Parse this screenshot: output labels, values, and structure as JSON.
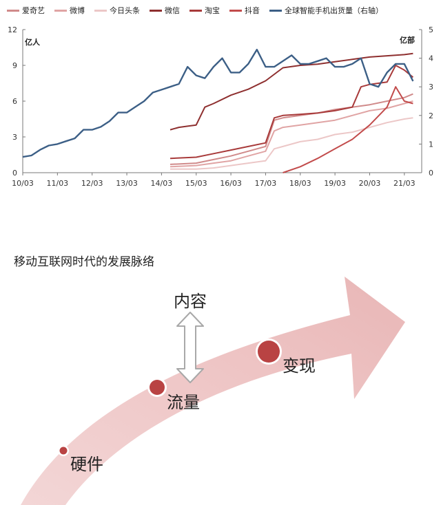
{
  "chart_data": {
    "type": "line",
    "legend": [
      "爱奇艺",
      "微博",
      "今日头条",
      "微信",
      "淘宝",
      "抖音",
      "全球智能手机出货量（右轴）"
    ],
    "left_unit": "亿人",
    "right_unit": "亿部",
    "x_ticks": [
      "10/03",
      "11/03",
      "12/03",
      "13/03",
      "14/03",
      "15/03",
      "16/03",
      "17/03",
      "18/03",
      "19/03",
      "20/03",
      "21/03"
    ],
    "y_ticks": [
      0,
      3,
      6,
      9,
      12
    ],
    "y2_ticks": [
      0,
      1,
      2,
      3,
      4,
      5
    ],
    "ylim": [
      0,
      12
    ],
    "y2lim": [
      0,
      5
    ],
    "series": [
      {
        "name": "爱奇艺",
        "axis": "left",
        "color": "#d08a8a",
        "x": [
          2014.25,
          2015.0,
          2015.5,
          2016.0,
          2016.5,
          2017.0,
          2017.25,
          2017.5,
          2018.0,
          2018.5,
          2019.0,
          2019.5,
          2020.0,
          2020.5,
          2021.0,
          2021.25
        ],
        "y": [
          0.7,
          0.8,
          1.1,
          1.4,
          1.8,
          2.2,
          4.4,
          4.6,
          4.8,
          5.0,
          5.3,
          5.5,
          5.7,
          6.0,
          6.3,
          6.6
        ]
      },
      {
        "name": "微博",
        "axis": "left",
        "color": "#e0a4a4",
        "x": [
          2014.25,
          2015.0,
          2015.5,
          2016.0,
          2016.5,
          2017.0,
          2017.25,
          2017.5,
          2018.0,
          2018.5,
          2019.0,
          2019.5,
          2020.0,
          2020.5,
          2021.0,
          2021.25
        ],
        "y": [
          0.5,
          0.6,
          0.8,
          1.0,
          1.4,
          1.8,
          3.5,
          3.8,
          4.0,
          4.2,
          4.4,
          4.8,
          5.2,
          5.4,
          5.8,
          6.0
        ]
      },
      {
        "name": "今日头条",
        "axis": "left",
        "color": "#ecc7c7",
        "x": [
          2014.25,
          2015.0,
          2015.5,
          2016.0,
          2016.5,
          2017.0,
          2017.25,
          2017.5,
          2018.0,
          2018.5,
          2019.0,
          2019.5,
          2020.0,
          2020.5,
          2021.0,
          2021.25
        ],
        "y": [
          0.3,
          0.3,
          0.4,
          0.6,
          0.8,
          1.0,
          2.0,
          2.2,
          2.6,
          2.8,
          3.2,
          3.4,
          3.8,
          4.2,
          4.5,
          4.6
        ]
      },
      {
        "name": "微信",
        "axis": "left",
        "color": "#8e2f2f",
        "x": [
          2014.25,
          2014.5,
          2014.75,
          2015.0,
          2015.25,
          2015.5,
          2016.0,
          2016.5,
          2017.0,
          2017.5,
          2018.0,
          2018.5,
          2019.0,
          2019.5,
          2020.0,
          2020.5,
          2021.0,
          2021.25
        ],
        "y": [
          3.6,
          3.8,
          3.9,
          4.0,
          5.5,
          5.8,
          6.5,
          7.0,
          7.7,
          8.8,
          9.0,
          9.1,
          9.3,
          9.5,
          9.7,
          9.8,
          9.9,
          10.0
        ]
      },
      {
        "name": "淘宝",
        "axis": "left",
        "color": "#a83a3a",
        "x": [
          2014.25,
          2015.0,
          2015.5,
          2016.0,
          2016.5,
          2017.0,
          2017.25,
          2017.5,
          2018.0,
          2018.5,
          2019.0,
          2019.5,
          2019.75,
          2020.0,
          2020.5,
          2020.75,
          2021.0,
          2021.25
        ],
        "y": [
          1.2,
          1.3,
          1.6,
          1.9,
          2.2,
          2.5,
          4.6,
          4.8,
          4.9,
          5.0,
          5.2,
          5.5,
          7.2,
          7.4,
          7.6,
          9.0,
          8.6,
          8.0
        ]
      },
      {
        "name": "抖音",
        "axis": "left",
        "color": "#c24b4b",
        "x": [
          2017.5,
          2018.0,
          2018.5,
          2019.0,
          2019.5,
          2020.0,
          2020.5,
          2020.75,
          2021.0,
          2021.25
        ],
        "y": [
          0.0,
          0.5,
          1.2,
          2.0,
          2.8,
          4.0,
          5.5,
          7.2,
          6.0,
          5.8
        ]
      },
      {
        "name": "全球智能手机出货量（右轴）",
        "axis": "right",
        "color": "#3c5f86",
        "x": [
          2010.0,
          2010.25,
          2010.5,
          2010.75,
          2011.0,
          2011.25,
          2011.5,
          2011.75,
          2012.0,
          2012.25,
          2012.5,
          2012.75,
          2013.0,
          2013.25,
          2013.5,
          2013.75,
          2014.0,
          2014.25,
          2014.5,
          2014.75,
          2015.0,
          2015.25,
          2015.5,
          2015.75,
          2016.0,
          2016.25,
          2016.5,
          2016.75,
          2017.0,
          2017.25,
          2017.5,
          2017.75,
          2018.0,
          2018.25,
          2018.5,
          2018.75,
          2019.0,
          2019.25,
          2019.5,
          2019.75,
          2020.0,
          2020.25,
          2020.5,
          2020.75,
          2021.0,
          2021.25
        ],
        "y": [
          0.55,
          0.6,
          0.8,
          0.95,
          1.0,
          1.1,
          1.2,
          1.5,
          1.5,
          1.6,
          1.8,
          2.1,
          2.1,
          2.3,
          2.5,
          2.8,
          2.9,
          3.0,
          3.1,
          3.7,
          3.4,
          3.3,
          3.7,
          4.0,
          3.5,
          3.5,
          3.8,
          4.3,
          3.7,
          3.7,
          3.9,
          4.1,
          3.8,
          3.8,
          3.9,
          4.0,
          3.7,
          3.7,
          3.8,
          4.0,
          3.1,
          3.0,
          3.5,
          3.8,
          3.8,
          3.2
        ]
      }
    ]
  },
  "diagram": {
    "title": "移动互联网时代的发展脉络",
    "labels": {
      "content": "内容",
      "hardware": "硬件",
      "traffic": "流量",
      "monetization": "变现"
    }
  }
}
